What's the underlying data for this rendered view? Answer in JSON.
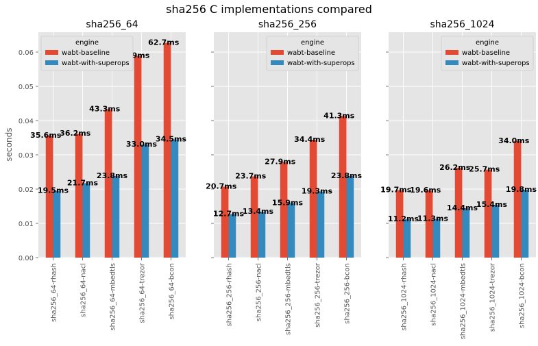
{
  "figure": {
    "suptitle": "sha256 C implementations compared",
    "ylabel": "seconds",
    "legend_title": "engine"
  },
  "colors": {
    "wabt-baseline": "#E24A33",
    "wabt-with-superops": "#348ABD",
    "axes_bg": "#E5E5E5",
    "grid": "#FFFFFF"
  },
  "chart_data": [
    {
      "type": "bar",
      "title": "sha256_64",
      "categories": [
        "sha256_64-rhash",
        "sha256_64-nacl",
        "sha256_64-mbedtls",
        "sha256_64-trezor",
        "sha256_64-bcon"
      ],
      "series": [
        {
          "name": "wabt-baseline",
          "values": [
            0.0356,
            0.0362,
            0.0433,
            0.0589,
            0.0627
          ],
          "labels": [
            "35.6ms",
            "36.2ms",
            "43.3ms",
            "58.9ms",
            "62.7ms"
          ]
        },
        {
          "name": "wabt-with-superops",
          "values": [
            0.0195,
            0.0217,
            0.0238,
            0.033,
            0.0345
          ],
          "labels": [
            "19.5ms",
            "21.7ms",
            "23.8ms",
            "33.0ms",
            "34.5ms"
          ]
        }
      ],
      "ylim": [
        0,
        0.0658
      ],
      "yticks": [
        "0.00",
        "0.01",
        "0.02",
        "0.03",
        "0.04",
        "0.05",
        "0.06"
      ],
      "ytick_values": [
        0,
        0.01,
        0.02,
        0.03,
        0.04,
        0.05,
        0.06
      ],
      "legend": "top-left",
      "grid": true
    },
    {
      "type": "bar",
      "title": "sha256_256",
      "categories": [
        "sha256_256-rhash",
        "sha256_256-nacl",
        "sha256_256-mbedtls",
        "sha256_256-trezor",
        "sha256_256-bcon"
      ],
      "series": [
        {
          "name": "wabt-baseline",
          "values": [
            0.0207,
            0.0237,
            0.0279,
            0.0344,
            0.0413
          ],
          "labels": [
            "20.7ms",
            "23.7ms",
            "27.9ms",
            "34.4ms",
            "41.3ms"
          ]
        },
        {
          "name": "wabt-with-superops",
          "values": [
            0.0127,
            0.0134,
            0.0159,
            0.0193,
            0.0238
          ],
          "labels": [
            "12.7ms",
            "13.4ms",
            "15.9ms",
            "19.3ms",
            "23.8ms"
          ]
        }
      ],
      "ylim": [
        0,
        0.0658
      ],
      "legend": "top-right",
      "grid": true
    },
    {
      "type": "bar",
      "title": "sha256_1024",
      "categories": [
        "sha256_1024-rhash",
        "sha256_1024-nacl",
        "sha256_1024-mbedtls",
        "sha256_1024-trezor",
        "sha256_1024-bcon"
      ],
      "series": [
        {
          "name": "wabt-baseline",
          "values": [
            0.0197,
            0.0196,
            0.0262,
            0.0257,
            0.034
          ],
          "labels": [
            "19.7ms",
            "19.6ms",
            "26.2ms",
            "25.7ms",
            "34.0ms"
          ]
        },
        {
          "name": "wabt-with-superops",
          "values": [
            0.0112,
            0.0113,
            0.0144,
            0.0154,
            0.0198
          ],
          "labels": [
            "11.2ms",
            "11.3ms",
            "14.4ms",
            "15.4ms",
            "19.8ms"
          ]
        }
      ],
      "ylim": [
        0,
        0.0658
      ],
      "legend": "top-right",
      "grid": true
    }
  ]
}
